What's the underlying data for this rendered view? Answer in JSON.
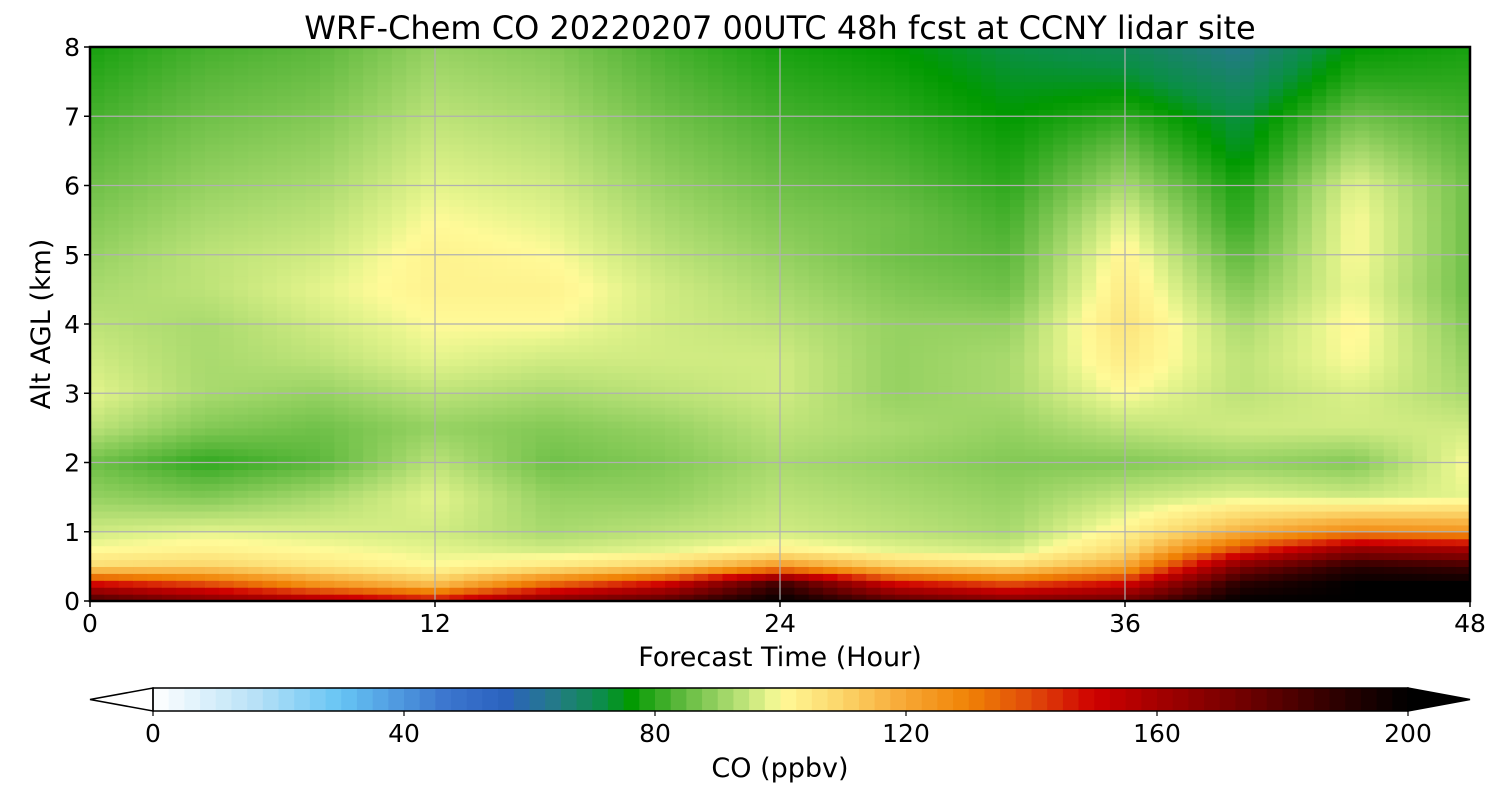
{
  "chart_data": {
    "type": "heatmap",
    "title": "WRF-Chem CO  20220207 00UTC 48h fcst at CCNY lidar site",
    "xlabel": "Forecast Time (Hour)",
    "ylabel": "Alt AGL (km)",
    "xlim": [
      0,
      48
    ],
    "ylim": [
      0,
      8
    ],
    "xticks": [
      0,
      12,
      24,
      36,
      48
    ],
    "yticks": [
      0,
      1,
      2,
      3,
      4,
      5,
      6,
      7,
      8
    ],
    "grid": true,
    "x": [
      0,
      4,
      8,
      12,
      16,
      20,
      24,
      28,
      32,
      36,
      40,
      44,
      48
    ],
    "y": [
      0,
      0.25,
      0.5,
      0.75,
      1,
      1.5,
      2,
      2.5,
      3,
      3.5,
      4,
      4.5,
      5,
      5.5,
      6,
      6.5,
      7,
      7.5,
      8
    ],
    "z": [
      [
        185,
        170,
        160,
        150,
        170,
        180,
        200,
        180,
        170,
        175,
        200,
        200,
        200
      ],
      [
        150,
        140,
        125,
        115,
        135,
        150,
        185,
        150,
        140,
        150,
        190,
        200,
        200
      ],
      [
        108,
        110,
        105,
        100,
        105,
        110,
        125,
        112,
        108,
        120,
        170,
        190,
        185
      ],
      [
        100,
        102,
        100,
        98,
        96,
        98,
        102,
        98,
        96,
        108,
        140,
        165,
        160
      ],
      [
        96,
        98,
        97,
        96,
        92,
        94,
        96,
        94,
        92,
        102,
        118,
        128,
        125
      ],
      [
        90,
        88,
        92,
        98,
        90,
        90,
        94,
        92,
        90,
        95,
        98,
        96,
        98
      ],
      [
        86,
        80,
        84,
        94,
        86,
        88,
        92,
        90,
        88,
        88,
        90,
        88,
        100
      ],
      [
        94,
        88,
        86,
        90,
        88,
        90,
        94,
        92,
        90,
        94,
        96,
        96,
        96
      ],
      [
        98,
        92,
        90,
        94,
        92,
        94,
        96,
        90,
        92,
        100,
        94,
        97,
        92
      ],
      [
        96,
        92,
        94,
        98,
        96,
        96,
        96,
        90,
        92,
        104,
        94,
        100,
        90
      ],
      [
        94,
        92,
        96,
        100,
        100,
        96,
        94,
        90,
        90,
        106,
        92,
        101,
        88
      ],
      [
        92,
        94,
        98,
        102,
        102,
        96,
        92,
        88,
        86,
        104,
        88,
        99,
        86
      ],
      [
        90,
        94,
        96,
        102,
        100,
        94,
        90,
        86,
        84,
        102,
        84,
        100,
        86
      ],
      [
        88,
        92,
        94,
        100,
        98,
        92,
        88,
        86,
        82,
        98,
        80,
        100,
        86
      ],
      [
        86,
        90,
        92,
        98,
        96,
        90,
        86,
        84,
        80,
        92,
        78,
        98,
        86
      ],
      [
        84,
        88,
        90,
        96,
        94,
        88,
        84,
        82,
        78,
        86,
        74,
        92,
        84
      ],
      [
        82,
        86,
        88,
        94,
        92,
        86,
        82,
        80,
        76,
        80,
        72,
        86,
        82
      ],
      [
        80,
        84,
        86,
        92,
        90,
        84,
        80,
        78,
        74,
        74,
        68,
        80,
        80
      ],
      [
        78,
        82,
        84,
        90,
        88,
        82,
        78,
        76,
        72,
        70,
        64,
        76,
        78
      ]
    ],
    "colorbar": {
      "label": "CO  (ppbv)",
      "min": 0,
      "max": 200,
      "ticks": [
        0,
        40,
        80,
        120,
        160,
        200
      ],
      "extend": "both",
      "stops": [
        {
          "v": 0,
          "c": "#ffffff"
        },
        {
          "v": 16,
          "c": "#b9e2f7"
        },
        {
          "v": 30,
          "c": "#66c4f4"
        },
        {
          "v": 46,
          "c": "#3d78cf"
        },
        {
          "v": 56,
          "c": "#2b62bf"
        },
        {
          "v": 64,
          "c": "#247a88"
        },
        {
          "v": 72,
          "c": "#0a8f45"
        },
        {
          "v": 76,
          "c": "#009900"
        },
        {
          "v": 84,
          "c": "#5cb83c"
        },
        {
          "v": 92,
          "c": "#a9da6e"
        },
        {
          "v": 98,
          "c": "#e4f48c"
        },
        {
          "v": 100,
          "c": "#fffa98"
        },
        {
          "v": 110,
          "c": "#fbd468"
        },
        {
          "v": 120,
          "c": "#f7a633"
        },
        {
          "v": 130,
          "c": "#f08205"
        },
        {
          "v": 140,
          "c": "#e0490a"
        },
        {
          "v": 150,
          "c": "#cf0000"
        },
        {
          "v": 160,
          "c": "#a50000"
        },
        {
          "v": 175,
          "c": "#6b0000"
        },
        {
          "v": 188,
          "c": "#300000"
        },
        {
          "v": 200,
          "c": "#000000"
        }
      ]
    }
  }
}
